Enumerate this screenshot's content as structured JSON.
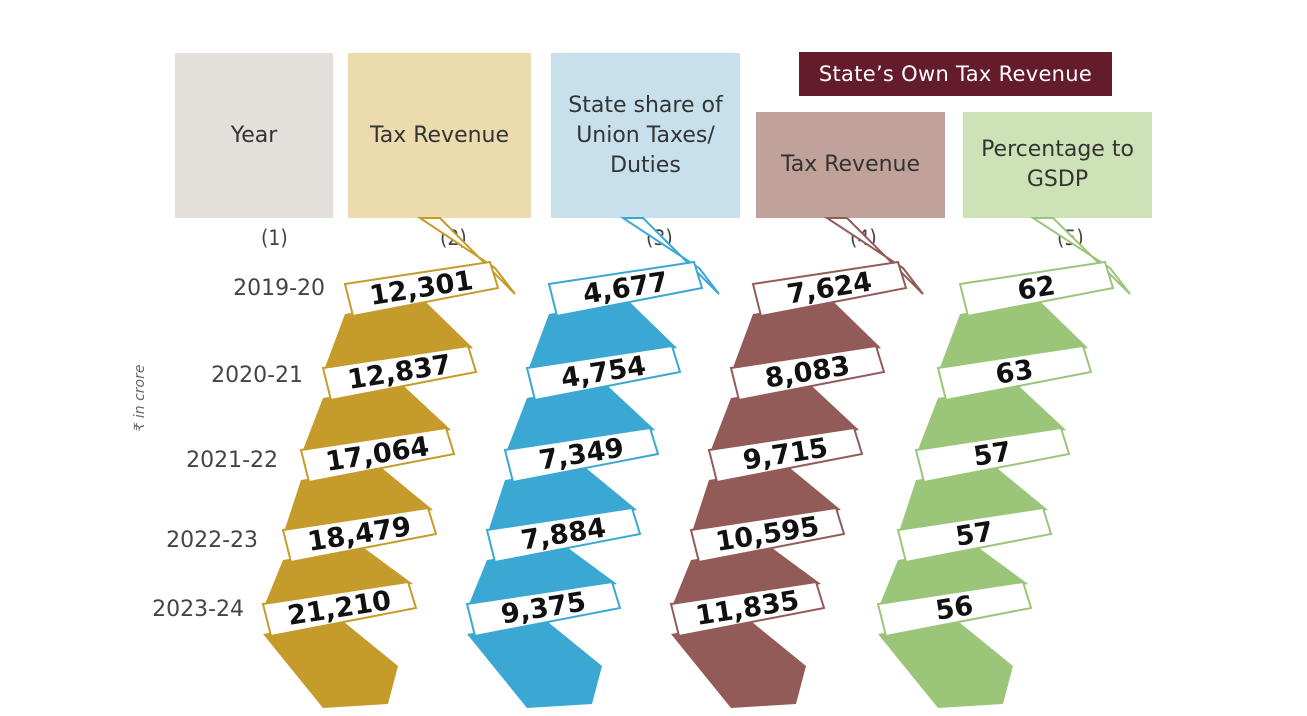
{
  "headers": {
    "year": "Year",
    "tax_revenue": "Tax Revenue",
    "state_share_l1": "State share of",
    "state_share_l2": "Union Taxes/",
    "state_share_l3": "Duties",
    "own_group": "State’s Own Tax Revenue",
    "own_tax_revenue": "Tax Revenue",
    "pct_l1": "Percentage to",
    "pct_l2": "GSDP"
  },
  "column_numbers": [
    "(1)",
    "(2)",
    "(3)",
    "(4)",
    "(5)"
  ],
  "unit_label": "₹ in crore",
  "colors": {
    "tax": "#c59b2b",
    "share": "#3aa8d2",
    "own": "#935b58",
    "pct": "#9bc679"
  },
  "chart_data": {
    "type": "table",
    "categories": [
      "2019-20",
      "2020-21",
      "2021-22",
      "2022-23",
      "2023-24"
    ],
    "series": [
      {
        "name": "Tax Revenue",
        "values": [
          12301,
          12837,
          17064,
          18479,
          21210
        ],
        "labels": [
          "12,301",
          "12,837",
          "17,064",
          "18,479",
          "21,210"
        ]
      },
      {
        "name": "State share of Union Taxes/ Duties",
        "values": [
          4677,
          4754,
          7349,
          7884,
          9375
        ],
        "labels": [
          "4,677",
          "4,754",
          "7,349",
          "7,884",
          "9,375"
        ]
      },
      {
        "name": "Tax Revenue",
        "values": [
          7624,
          8083,
          9715,
          10595,
          11835
        ],
        "labels": [
          "7,624",
          "8,083",
          "9,715",
          "10,595",
          "11,835"
        ]
      },
      {
        "name": "Percentage to GSDP",
        "values": [
          62,
          63,
          57,
          57,
          56
        ],
        "labels": [
          "62",
          "63",
          "57",
          "57",
          "56"
        ]
      }
    ]
  }
}
